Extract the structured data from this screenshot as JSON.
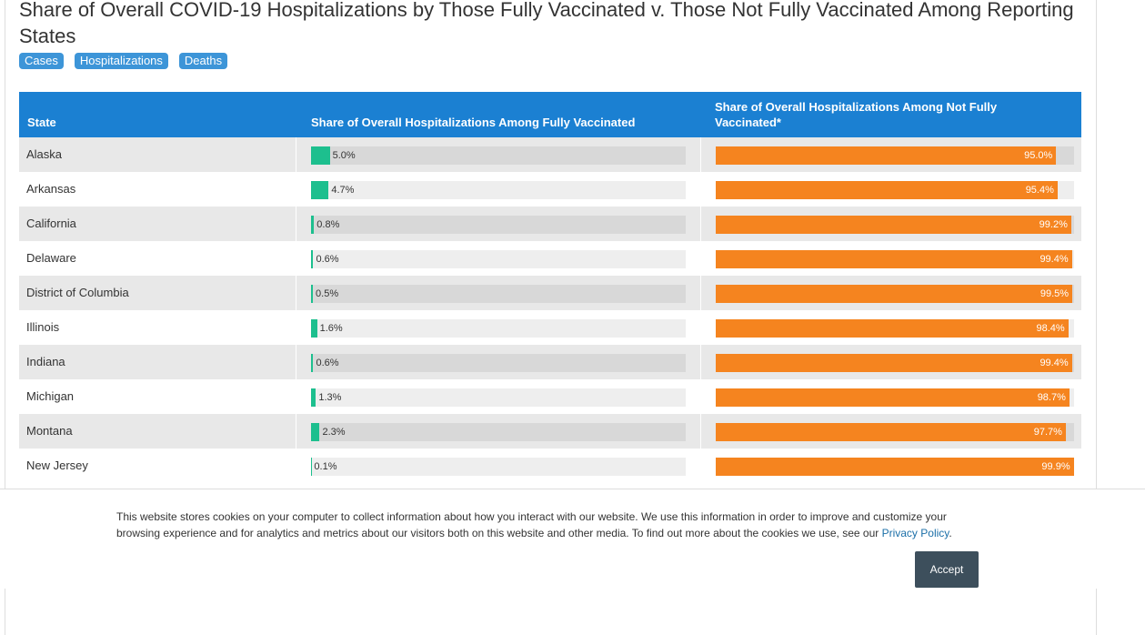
{
  "header": {
    "title": "Share of Overall COVID-19 Hospitalizations by Those Fully Vaccinated v. Those Not Fully Vaccinated Among Reporting States",
    "tags": [
      "Cases",
      "Hospitalizations",
      "Deaths"
    ]
  },
  "table": {
    "columns": [
      "State",
      "Share of Overall Hospitalizations Among Fully Vaccinated",
      "Share of Overall Hospitalizations Among Not Fully Vaccinated*"
    ],
    "states": [
      "Alaska",
      "Arkansas",
      "California",
      "Delaware",
      "District of Columbia",
      "Illinois",
      "Indiana",
      "Michigan",
      "Montana",
      "New Jersey"
    ],
    "fully": {
      "color": "#1dbf8e",
      "xlim": [
        0,
        100
      ],
      "values": [
        5.0,
        4.7,
        0.8,
        0.6,
        0.5,
        1.6,
        0.6,
        1.3,
        2.3,
        0.1
      ],
      "value_labels": [
        "5.0%",
        "4.7%",
        "0.8%",
        "0.6%",
        "0.5%",
        "1.6%",
        "0.6%",
        "1.3%",
        "2.3%",
        "0.1%"
      ]
    },
    "not_fully": {
      "color": "#f5841f",
      "xlim": [
        0,
        100
      ],
      "values": [
        95.0,
        95.4,
        99.2,
        99.4,
        99.5,
        98.4,
        99.4,
        98.7,
        97.7,
        99.9
      ],
      "value_labels": [
        "95.0%",
        "95.4%",
        "99.2%",
        "99.4%",
        "99.5%",
        "98.4%",
        "99.4%",
        "98.7%",
        "97.7%",
        "99.9%"
      ]
    }
  },
  "cookie": {
    "text": "This website stores cookies on your computer to collect information about how you interact with our website. We use this information in order to improve and customize your browsing experience and for analytics and metrics about our visitors both on this website and other media. To find out more about the cookies we use, see our ",
    "link": "Privacy Policy",
    "text_end": ".",
    "button": "Accept"
  }
}
